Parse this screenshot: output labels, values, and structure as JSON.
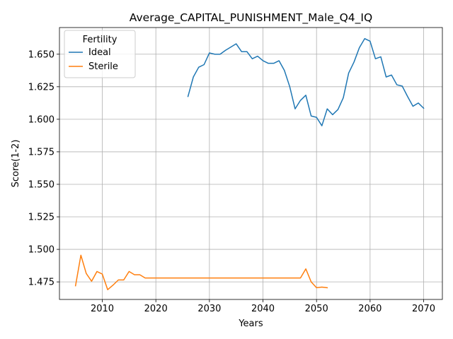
{
  "chart_data": {
    "type": "line",
    "title": "Average_CAPITAL_PUNISHMENT_Male_Q4_IQ",
    "xlabel": "Years",
    "ylabel": "Score(1-2)",
    "xlim": [
      2002,
      2073.5
    ],
    "ylim": [
      1.4615,
      1.6705
    ],
    "xticks": [
      2010,
      2020,
      2030,
      2040,
      2050,
      2060,
      2070
    ],
    "xtick_labels": [
      "2010",
      "2020",
      "2030",
      "2040",
      "2050",
      "2060",
      "2070"
    ],
    "yticks": [
      1.475,
      1.5,
      1.525,
      1.55,
      1.575,
      1.6,
      1.625,
      1.65
    ],
    "ytick_labels": [
      "1.475",
      "1.500",
      "1.525",
      "1.550",
      "1.575",
      "1.600",
      "1.625",
      "1.650"
    ],
    "grid": true,
    "legend": {
      "title": "Fertility",
      "position": "upper-left"
    },
    "series": [
      {
        "name": "Ideal",
        "color": "#1f77b4",
        "x": [
          2026,
          2027,
          2028,
          2029,
          2030,
          2031,
          2032,
          2033,
          2034,
          2035,
          2036,
          2037,
          2038,
          2039,
          2040,
          2041,
          2042,
          2043,
          2044,
          2045,
          2046,
          2047,
          2048,
          2049,
          2050,
          2051,
          2052,
          2053,
          2054,
          2055,
          2056,
          2057,
          2058,
          2059,
          2060,
          2061,
          2062,
          2063,
          2064,
          2065,
          2066,
          2067,
          2068,
          2069,
          2070
        ],
        "y": [
          1.6175,
          1.6325,
          1.64,
          1.642,
          1.651,
          1.65,
          1.65,
          1.653,
          1.6555,
          1.658,
          1.652,
          1.652,
          1.6465,
          1.6485,
          1.645,
          1.643,
          1.643,
          1.645,
          1.6375,
          1.625,
          1.608,
          1.6145,
          1.6185,
          1.6025,
          1.6015,
          1.595,
          1.608,
          1.6035,
          1.6075,
          1.6165,
          1.6355,
          1.644,
          1.655,
          1.662,
          1.66,
          1.6465,
          1.648,
          1.6325,
          1.634,
          1.6265,
          1.6255,
          1.6175,
          1.61,
          1.6125,
          1.6085
        ]
      },
      {
        "name": "Sterile",
        "color": "#ff7f0e",
        "x": [
          2005,
          2006,
          2007,
          2008,
          2009,
          2010,
          2011,
          2012,
          2013,
          2014,
          2015,
          2016,
          2017,
          2018,
          2019,
          2020,
          2021,
          2022,
          2023,
          2024,
          2025,
          2026,
          2027,
          2028,
          2029,
          2030,
          2031,
          2032,
          2033,
          2034,
          2035,
          2036,
          2037,
          2038,
          2039,
          2040,
          2041,
          2042,
          2043,
          2044,
          2045,
          2046,
          2047,
          2048,
          2049,
          2050,
          2051,
          2052
        ],
        "y": [
          1.472,
          1.4955,
          1.4815,
          1.4755,
          1.483,
          1.481,
          1.469,
          1.4725,
          1.4765,
          1.4765,
          1.483,
          1.4805,
          1.4805,
          1.478,
          1.478,
          1.478,
          1.478,
          1.478,
          1.478,
          1.478,
          1.478,
          1.478,
          1.478,
          1.478,
          1.478,
          1.478,
          1.478,
          1.478,
          1.478,
          1.478,
          1.478,
          1.478,
          1.478,
          1.478,
          1.478,
          1.478,
          1.478,
          1.478,
          1.478,
          1.478,
          1.478,
          1.478,
          1.478,
          1.485,
          1.475,
          1.4705,
          1.471,
          1.4705
        ]
      }
    ]
  }
}
